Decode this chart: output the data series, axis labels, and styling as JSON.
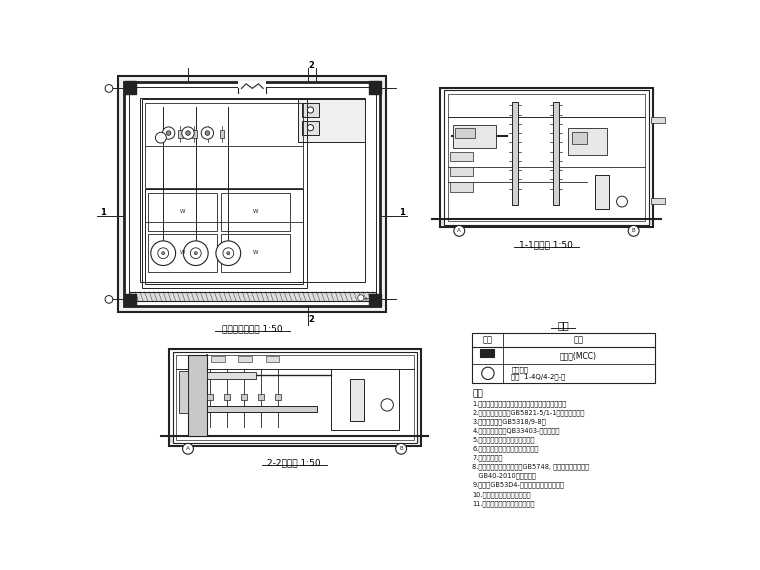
{
  "bg": "white",
  "lc": "#444444",
  "dc": "#222222",
  "label_plan": "给水泵房平面图 1:50",
  "label_s11": "1-1剥面图 1:50",
  "label_s22": "2-2剥面图 1:50",
  "leg_title": "图例",
  "leg_h1": "符号",
  "leg_h2": "说明",
  "leg_r1d": "控制柜(MCC)",
  "leg_r2d1": "水泵机组",
  "leg_r2d2": "规格  1-4Q/4-2中-内",
  "note_title": "说明",
  "notes": [
    "1.设备型号、规格参见设备表，设备厂家号等自定。",
    "2.管道连接参见图号GB5821-5/1-1《管道连接》。",
    "3.法兰图号参见GB5318/9-8。",
    "4.阀门件参见图号QB33403-《阀门》。",
    "5.各泵出口均设止回阀和追调阀。",
    "6.单泵工作，安装单个泵的流量计。",
    "7.泵组即考虫。",
    "8.泵组连接设备接地模块按GB5748, 中国人民解放军标准",
    "   GB40-2010执行厂已。",
    "9.泵组按GB53D4-要求安装消防防火设备。",
    "10.有关设备外精杉构地威导。",
    "11.泵房内地面按照大样图处理。"
  ]
}
